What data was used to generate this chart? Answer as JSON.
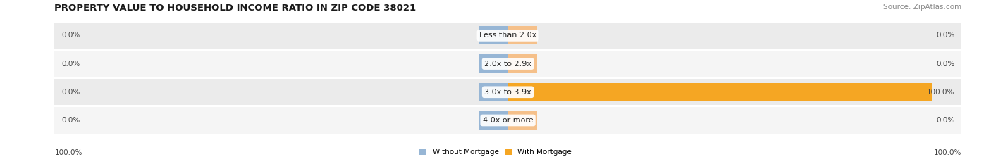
{
  "title": "PROPERTY VALUE TO HOUSEHOLD INCOME RATIO IN ZIP CODE 38021",
  "source": "Source: ZipAtlas.com",
  "categories": [
    "Less than 2.0x",
    "2.0x to 2.9x",
    "3.0x to 3.9x",
    "4.0x or more"
  ],
  "without_mortgage": [
    0.0,
    0.0,
    0.0,
    0.0
  ],
  "with_mortgage": [
    0.0,
    0.0,
    100.0,
    0.0
  ],
  "color_without": "#97b6d5",
  "color_with": "#f5c08a",
  "color_with_full": "#f5a623",
  "row_bg": "#ebebeb",
  "row_bg_alt": "#f5f5f5",
  "left_label": "100.0%",
  "right_label": "100.0%",
  "legend_without": "Without Mortgage",
  "legend_with": "With Mortgage",
  "stub_size": 6.5,
  "xlim_left": -100,
  "xlim_right": 100,
  "title_fontsize": 9.5,
  "source_fontsize": 7.5,
  "label_fontsize": 7.5,
  "cat_fontsize": 8.0
}
